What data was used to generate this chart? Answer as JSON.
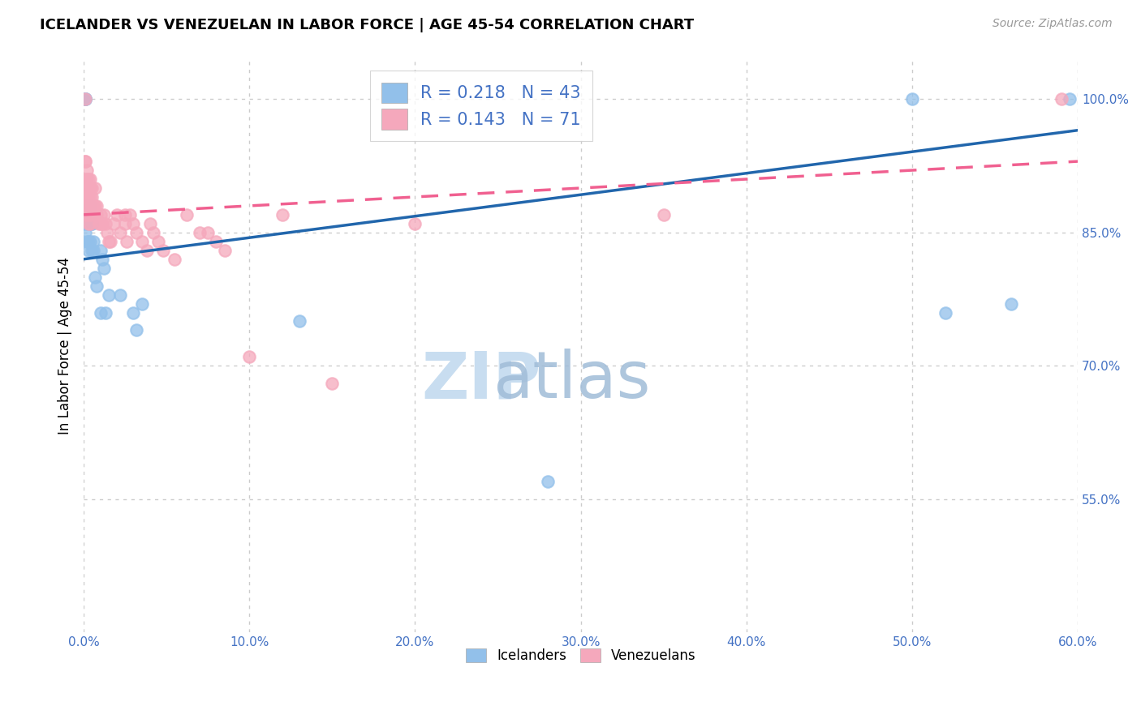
{
  "title": "ICELANDER VS VENEZUELAN IN LABOR FORCE | AGE 45-54 CORRELATION CHART",
  "source": "Source: ZipAtlas.com",
  "ylabel": "In Labor Force | Age 45-54",
  "watermark_zip": "ZIP",
  "watermark_atlas": "atlas",
  "x_min": 0.0,
  "x_max": 0.6,
  "y_min": 0.4,
  "y_max": 1.045,
  "x_ticks": [
    0.0,
    0.1,
    0.2,
    0.3,
    0.4,
    0.5,
    0.6
  ],
  "x_tick_labels": [
    "0.0%",
    "10.0%",
    "20.0%",
    "30.0%",
    "40.0%",
    "50.0%",
    "60.0%"
  ],
  "y_ticks": [
    0.55,
    0.7,
    0.85,
    1.0
  ],
  "y_tick_labels": [
    "55.0%",
    "70.0%",
    "85.0%",
    "100.0%"
  ],
  "icelander_color": "#92c0ea",
  "venezuelan_color": "#f5a8bc",
  "icelander_line_color": "#2166ac",
  "venezuelan_line_color": "#f06090",
  "blue_text_color": "#4472c4",
  "R_icelander": 0.218,
  "N_icelander": 43,
  "R_venezuelan": 0.143,
  "N_venezuelan": 71,
  "ice_line_x0": 0.0,
  "ice_line_y0": 0.82,
  "ice_line_x1": 0.6,
  "ice_line_y1": 0.965,
  "ven_line_x0": 0.0,
  "ven_line_y0": 0.87,
  "ven_line_x1": 0.6,
  "ven_line_y1": 0.93,
  "icelander_x": [
    0.001,
    0.001,
    0.001,
    0.001,
    0.001,
    0.001,
    0.001,
    0.002,
    0.002,
    0.002,
    0.002,
    0.003,
    0.003,
    0.003,
    0.003,
    0.003,
    0.004,
    0.004,
    0.004,
    0.004,
    0.005,
    0.005,
    0.005,
    0.006,
    0.006,
    0.007,
    0.008,
    0.01,
    0.01,
    0.011,
    0.012,
    0.013,
    0.015,
    0.022,
    0.03,
    0.032,
    0.035,
    0.13,
    0.28,
    0.5,
    0.52,
    0.56,
    0.595
  ],
  "icelander_y": [
    1.0,
    1.0,
    1.0,
    1.0,
    0.87,
    0.86,
    0.85,
    0.88,
    0.87,
    0.87,
    0.84,
    0.87,
    0.87,
    0.86,
    0.84,
    0.83,
    0.88,
    0.88,
    0.87,
    0.84,
    0.86,
    0.86,
    0.83,
    0.84,
    0.83,
    0.8,
    0.79,
    0.76,
    0.83,
    0.82,
    0.81,
    0.76,
    0.78,
    0.78,
    0.76,
    0.74,
    0.77,
    0.75,
    0.57,
    1.0,
    0.76,
    0.77,
    1.0
  ],
  "venezuelan_x": [
    0.001,
    0.001,
    0.001,
    0.001,
    0.001,
    0.001,
    0.001,
    0.001,
    0.002,
    0.002,
    0.002,
    0.002,
    0.002,
    0.002,
    0.003,
    0.003,
    0.003,
    0.003,
    0.003,
    0.003,
    0.004,
    0.004,
    0.004,
    0.004,
    0.004,
    0.005,
    0.005,
    0.005,
    0.006,
    0.006,
    0.007,
    0.007,
    0.007,
    0.008,
    0.008,
    0.009,
    0.01,
    0.01,
    0.011,
    0.012,
    0.013,
    0.014,
    0.015,
    0.016,
    0.018,
    0.02,
    0.022,
    0.025,
    0.025,
    0.026,
    0.028,
    0.03,
    0.032,
    0.035,
    0.038,
    0.04,
    0.042,
    0.045,
    0.048,
    0.055,
    0.062,
    0.07,
    0.075,
    0.08,
    0.085,
    0.1,
    0.12,
    0.15,
    0.2,
    0.35,
    0.59
  ],
  "venezuelan_y": [
    1.0,
    0.93,
    0.93,
    0.91,
    0.9,
    0.9,
    0.89,
    0.88,
    0.92,
    0.91,
    0.9,
    0.89,
    0.88,
    0.87,
    0.91,
    0.9,
    0.89,
    0.88,
    0.87,
    0.86,
    0.91,
    0.9,
    0.89,
    0.87,
    0.86,
    0.9,
    0.89,
    0.88,
    0.88,
    0.87,
    0.9,
    0.88,
    0.87,
    0.88,
    0.87,
    0.86,
    0.87,
    0.86,
    0.86,
    0.87,
    0.86,
    0.85,
    0.84,
    0.84,
    0.86,
    0.87,
    0.85,
    0.87,
    0.86,
    0.84,
    0.87,
    0.86,
    0.85,
    0.84,
    0.83,
    0.86,
    0.85,
    0.84,
    0.83,
    0.82,
    0.87,
    0.85,
    0.85,
    0.84,
    0.83,
    0.71,
    0.87,
    0.68,
    0.86,
    0.87,
    1.0
  ]
}
